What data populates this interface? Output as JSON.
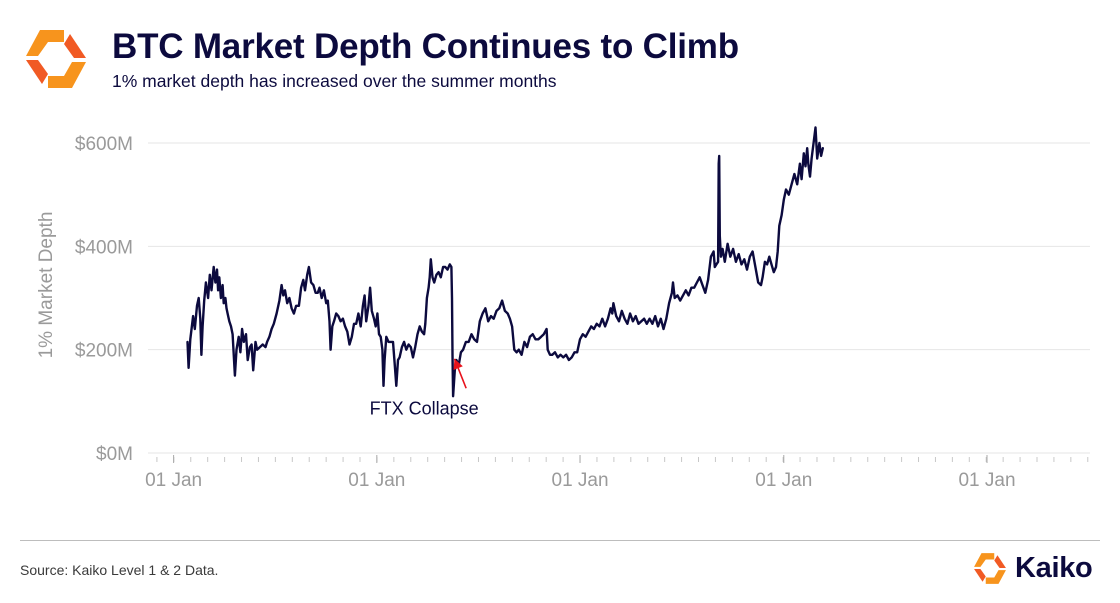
{
  "header": {
    "title": "BTC Market Depth Continues to Climb",
    "subtitle": "1% market depth has increased over the summer months"
  },
  "footer": {
    "source": "Source: Kaiko Level 1 & 2 Data.",
    "brand": "Kaiko"
  },
  "colors": {
    "line": "#0c0a3e",
    "grid": "#e6e6e6",
    "axis_text": "#9a9a9a",
    "annotation_arrow": "#e8121c",
    "brand_orange": "#f7941d",
    "brand_orange_dark": "#f15a24"
  },
  "chart_data": {
    "type": "line",
    "title": "BTC Market Depth Continues to Climb",
    "ylabel": "1% Market Depth",
    "xlabel": "",
    "ylim": [
      0,
      600
    ],
    "y_unit": "$M",
    "y_ticks": [
      {
        "value": 0,
        "label": "$0M"
      },
      {
        "value": 200,
        "label": "$200M"
      },
      {
        "value": 400,
        "label": "$400M"
      },
      {
        "value": 600,
        "label": "$600M"
      }
    ],
    "x_range_days": [
      -46,
      1646
    ],
    "x_ticks": [
      {
        "day": 0,
        "label": "01 Jan"
      },
      {
        "day": 365,
        "label": "01 Jan"
      },
      {
        "day": 730,
        "label": "01 Jan"
      },
      {
        "day": 1096,
        "label": "01 Jan"
      },
      {
        "day": 1461,
        "label": "01 Jan"
      }
    ],
    "grid": true,
    "legend": "none",
    "series": [
      {
        "name": "BTC 1% Market Depth",
        "x_unit": "days since first 01 Jan",
        "points": [
          [
            25,
            215
          ],
          [
            27,
            165
          ],
          [
            30,
            220
          ],
          [
            35,
            265
          ],
          [
            38,
            240
          ],
          [
            42,
            285
          ],
          [
            45,
            300
          ],
          [
            48,
            260
          ],
          [
            50,
            190
          ],
          [
            52,
            245
          ],
          [
            55,
            295
          ],
          [
            58,
            330
          ],
          [
            62,
            300
          ],
          [
            65,
            345
          ],
          [
            68,
            315
          ],
          [
            72,
            360
          ],
          [
            75,
            330
          ],
          [
            78,
            355
          ],
          [
            80,
            315
          ],
          [
            82,
            340
          ],
          [
            85,
            300
          ],
          [
            88,
            325
          ],
          [
            90,
            290
          ],
          [
            93,
            300
          ],
          [
            95,
            280
          ],
          [
            97,
            270
          ],
          [
            100,
            255
          ],
          [
            103,
            245
          ],
          [
            106,
            230
          ],
          [
            110,
            150
          ],
          [
            113,
            200
          ],
          [
            117,
            225
          ],
          [
            120,
            195
          ],
          [
            123,
            240
          ],
          [
            126,
            215
          ],
          [
            130,
            230
          ],
          [
            133,
            180
          ],
          [
            137,
            205
          ],
          [
            140,
            210
          ],
          [
            143,
            160
          ],
          [
            147,
            215
          ],
          [
            150,
            200
          ],
          [
            155,
            205
          ],
          [
            160,
            210
          ],
          [
            165,
            205
          ],
          [
            168,
            215
          ],
          [
            172,
            225
          ],
          [
            176,
            240
          ],
          [
            180,
            250
          ],
          [
            185,
            270
          ],
          [
            190,
            295
          ],
          [
            194,
            325
          ],
          [
            197,
            305
          ],
          [
            200,
            315
          ],
          [
            204,
            290
          ],
          [
            208,
            300
          ],
          [
            212,
            280
          ],
          [
            216,
            270
          ],
          [
            220,
            285
          ],
          [
            225,
            285
          ],
          [
            229,
            320
          ],
          [
            233,
            335
          ],
          [
            236,
            315
          ],
          [
            240,
            345
          ],
          [
            243,
            360
          ],
          [
            247,
            330
          ],
          [
            251,
            325
          ],
          [
            255,
            310
          ],
          [
            259,
            310
          ],
          [
            262,
            320
          ],
          [
            266,
            300
          ],
          [
            270,
            315
          ],
          [
            274,
            290
          ],
          [
            277,
            295
          ],
          [
            280,
            255
          ],
          [
            282,
            200
          ],
          [
            285,
            245
          ],
          [
            288,
            255
          ],
          [
            292,
            270
          ],
          [
            296,
            265
          ],
          [
            300,
            255
          ],
          [
            304,
            260
          ],
          [
            308,
            245
          ],
          [
            312,
            235
          ],
          [
            316,
            210
          ],
          [
            320,
            225
          ],
          [
            324,
            250
          ],
          [
            328,
            250
          ],
          [
            332,
            270
          ],
          [
            336,
            245
          ],
          [
            340,
            285
          ],
          [
            343,
            305
          ],
          [
            346,
            255
          ],
          [
            350,
            285
          ],
          [
            353,
            320
          ],
          [
            356,
            275
          ],
          [
            360,
            260
          ],
          [
            363,
            245
          ],
          [
            366,
            270
          ],
          [
            369,
            230
          ],
          [
            372,
            225
          ],
          [
            375,
            200
          ],
          [
            377,
            130
          ],
          [
            379,
            180
          ],
          [
            382,
            225
          ],
          [
            386,
            215
          ],
          [
            390,
            215
          ],
          [
            394,
            215
          ],
          [
            397,
            175
          ],
          [
            400,
            130
          ],
          [
            403,
            180
          ],
          [
            406,
            185
          ],
          [
            410,
            205
          ],
          [
            414,
            215
          ],
          [
            418,
            200
          ],
          [
            422,
            210
          ],
          [
            426,
            205
          ],
          [
            430,
            185
          ],
          [
            434,
            205
          ],
          [
            438,
            230
          ],
          [
            442,
            245
          ],
          [
            446,
            235
          ],
          [
            450,
            230
          ],
          [
            452,
            250
          ],
          [
            455,
            300
          ],
          [
            458,
            320
          ],
          [
            460,
            340
          ],
          [
            462,
            375
          ],
          [
            465,
            340
          ],
          [
            468,
            330
          ],
          [
            472,
            345
          ],
          [
            476,
            350
          ],
          [
            480,
            340
          ],
          [
            484,
            360
          ],
          [
            488,
            360
          ],
          [
            492,
            355
          ],
          [
            496,
            365
          ],
          [
            499,
            360
          ],
          [
            500,
            300
          ],
          [
            501,
            190
          ],
          [
            502,
            110
          ],
          [
            505,
            160
          ],
          [
            508,
            180
          ],
          [
            512,
            170
          ],
          [
            516,
            195
          ],
          [
            520,
            200
          ],
          [
            525,
            215
          ],
          [
            530,
            215
          ],
          [
            535,
            230
          ],
          [
            540,
            220
          ],
          [
            545,
            215
          ],
          [
            550,
            255
          ],
          [
            555,
            270
          ],
          [
            560,
            280
          ],
          [
            565,
            255
          ],
          [
            570,
            265
          ],
          [
            575,
            260
          ],
          [
            580,
            275
          ],
          [
            585,
            280
          ],
          [
            590,
            295
          ],
          [
            595,
            275
          ],
          [
            600,
            270
          ],
          [
            604,
            260
          ],
          [
            608,
            245
          ],
          [
            612,
            200
          ],
          [
            616,
            195
          ],
          [
            620,
            200
          ],
          [
            625,
            190
          ],
          [
            630,
            215
          ],
          [
            635,
            205
          ],
          [
            640,
            225
          ],
          [
            645,
            230
          ],
          [
            650,
            220
          ],
          [
            655,
            220
          ],
          [
            660,
            225
          ],
          [
            665,
            230
          ],
          [
            670,
            240
          ],
          [
            672,
            200
          ],
          [
            676,
            190
          ],
          [
            680,
            190
          ],
          [
            685,
            195
          ],
          [
            690,
            185
          ],
          [
            695,
            190
          ],
          [
            700,
            185
          ],
          [
            705,
            190
          ],
          [
            710,
            180
          ],
          [
            715,
            185
          ],
          [
            720,
            195
          ],
          [
            725,
            195
          ],
          [
            730,
            220
          ],
          [
            735,
            230
          ],
          [
            740,
            225
          ],
          [
            745,
            235
          ],
          [
            750,
            245
          ],
          [
            755,
            240
          ],
          [
            760,
            250
          ],
          [
            765,
            245
          ],
          [
            770,
            260
          ],
          [
            775,
            245
          ],
          [
            780,
            260
          ],
          [
            785,
            280
          ],
          [
            788,
            270
          ],
          [
            790,
            290
          ],
          [
            795,
            265
          ],
          [
            800,
            255
          ],
          [
            805,
            275
          ],
          [
            810,
            260
          ],
          [
            815,
            250
          ],
          [
            820,
            270
          ],
          [
            825,
            255
          ],
          [
            830,
            265
          ],
          [
            835,
            250
          ],
          [
            840,
            255
          ],
          [
            845,
            260
          ],
          [
            850,
            250
          ],
          [
            855,
            260
          ],
          [
            860,
            250
          ],
          [
            865,
            265
          ],
          [
            870,
            245
          ],
          [
            875,
            260
          ],
          [
            880,
            240
          ],
          [
            885,
            260
          ],
          [
            890,
            290
          ],
          [
            895,
            310
          ],
          [
            897,
            330
          ],
          [
            900,
            300
          ],
          [
            905,
            305
          ],
          [
            910,
            295
          ],
          [
            915,
            305
          ],
          [
            920,
            315
          ],
          [
            925,
            305
          ],
          [
            930,
            320
          ],
          [
            935,
            320
          ],
          [
            940,
            330
          ],
          [
            945,
            340
          ],
          [
            950,
            325
          ],
          [
            955,
            310
          ],
          [
            960,
            335
          ],
          [
            965,
            380
          ],
          [
            970,
            390
          ],
          [
            972,
            360
          ],
          [
            975,
            365
          ],
          [
            978,
            370
          ],
          [
            979,
            560
          ],
          [
            980,
            575
          ],
          [
            981,
            420
          ],
          [
            983,
            380
          ],
          [
            986,
            395
          ],
          [
            990,
            370
          ],
          [
            995,
            405
          ],
          [
            1000,
            380
          ],
          [
            1005,
            395
          ],
          [
            1010,
            370
          ],
          [
            1015,
            385
          ],
          [
            1020,
            365
          ],
          [
            1025,
            375
          ],
          [
            1030,
            355
          ],
          [
            1035,
            380
          ],
          [
            1040,
            390
          ],
          [
            1045,
            360
          ],
          [
            1050,
            330
          ],
          [
            1055,
            325
          ],
          [
            1058,
            340
          ],
          [
            1062,
            370
          ],
          [
            1066,
            365
          ],
          [
            1070,
            380
          ],
          [
            1074,
            365
          ],
          [
            1078,
            350
          ],
          [
            1082,
            360
          ],
          [
            1085,
            390
          ],
          [
            1088,
            440
          ],
          [
            1092,
            460
          ],
          [
            1096,
            490
          ],
          [
            1100,
            510
          ],
          [
            1105,
            500
          ],
          [
            1110,
            520
          ],
          [
            1115,
            540
          ],
          [
            1120,
            520
          ],
          [
            1125,
            560
          ],
          [
            1128,
            530
          ],
          [
            1132,
            580
          ],
          [
            1135,
            555
          ],
          [
            1138,
            590
          ],
          [
            1140,
            560
          ],
          [
            1143,
            535
          ],
          [
            1146,
            570
          ],
          [
            1150,
            605
          ],
          [
            1153,
            630
          ],
          [
            1156,
            570
          ],
          [
            1160,
            600
          ],
          [
            1163,
            575
          ],
          [
            1166,
            590
          ]
        ]
      }
    ],
    "annotations": [
      {
        "text": "FTX Collapse",
        "x": 450,
        "y": 75,
        "arrow_to": [
          465,
          190
        ]
      }
    ]
  }
}
